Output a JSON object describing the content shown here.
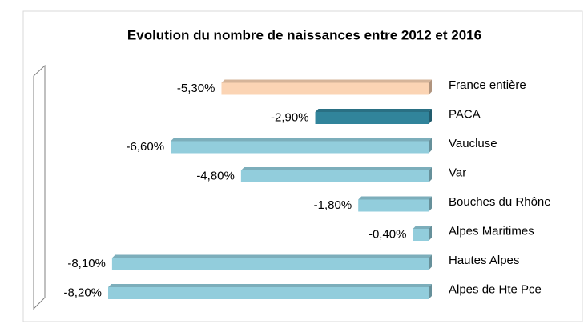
{
  "chart_data": {
    "type": "bar",
    "orientation": "horizontal",
    "title": "Evolution du nombre de naissances entre 2012 et 2016",
    "categories": [
      "France entière",
      "PACA",
      "Vaucluse",
      "Var",
      "Bouches du Rhône",
      "Alpes Maritimes",
      "Hautes Alpes",
      "Alpes de Hte Pce"
    ],
    "values": [
      -5.3,
      -2.9,
      -6.6,
      -4.8,
      -1.8,
      -0.4,
      -8.1,
      -8.2
    ],
    "value_labels": [
      "-5,30%",
      "-2,90%",
      "-6,60%",
      "-4,80%",
      "-1,80%",
      "-0,40%",
      "-8,10%",
      "-8,20%"
    ],
    "colors": [
      "#fbd4b4",
      "#31849b",
      "#92cddc",
      "#92cddc",
      "#92cddc",
      "#92cddc",
      "#92cddc",
      "#92cddc"
    ]
  }
}
